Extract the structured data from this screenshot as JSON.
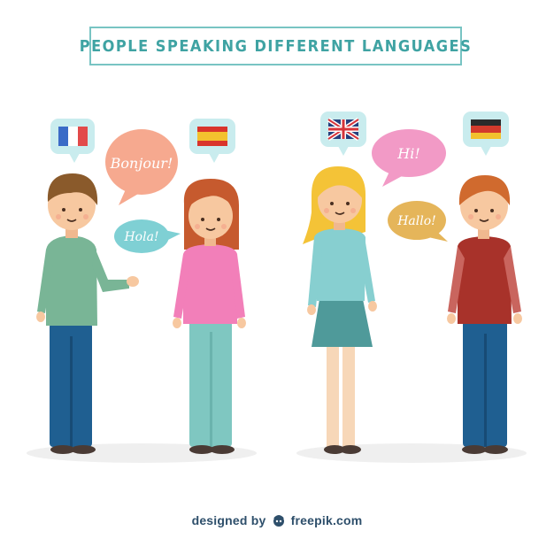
{
  "title": "PEOPLE SPEAKING DIFFERENT LANGUAGES",
  "bubbles": {
    "bonjour": "Bonjour!",
    "hola": "Hola!",
    "hi": "Hi!",
    "hallo": "Hallo!"
  },
  "flags": [
    "france-flag",
    "spain-flag",
    "uk-flag",
    "germany-flag"
  ],
  "colors": {
    "title_border": "#78c4c3",
    "title_text": "#3fa3a3",
    "bubble_peach": "#f6a98f",
    "bubble_teal": "#7fd0d4",
    "bubble_pink": "#f29ac6",
    "bubble_yellow": "#e5b55a",
    "flag_bubble": "#c9ecee"
  },
  "credit": {
    "designed_by": "designed by",
    "brand": "freepik.com"
  }
}
